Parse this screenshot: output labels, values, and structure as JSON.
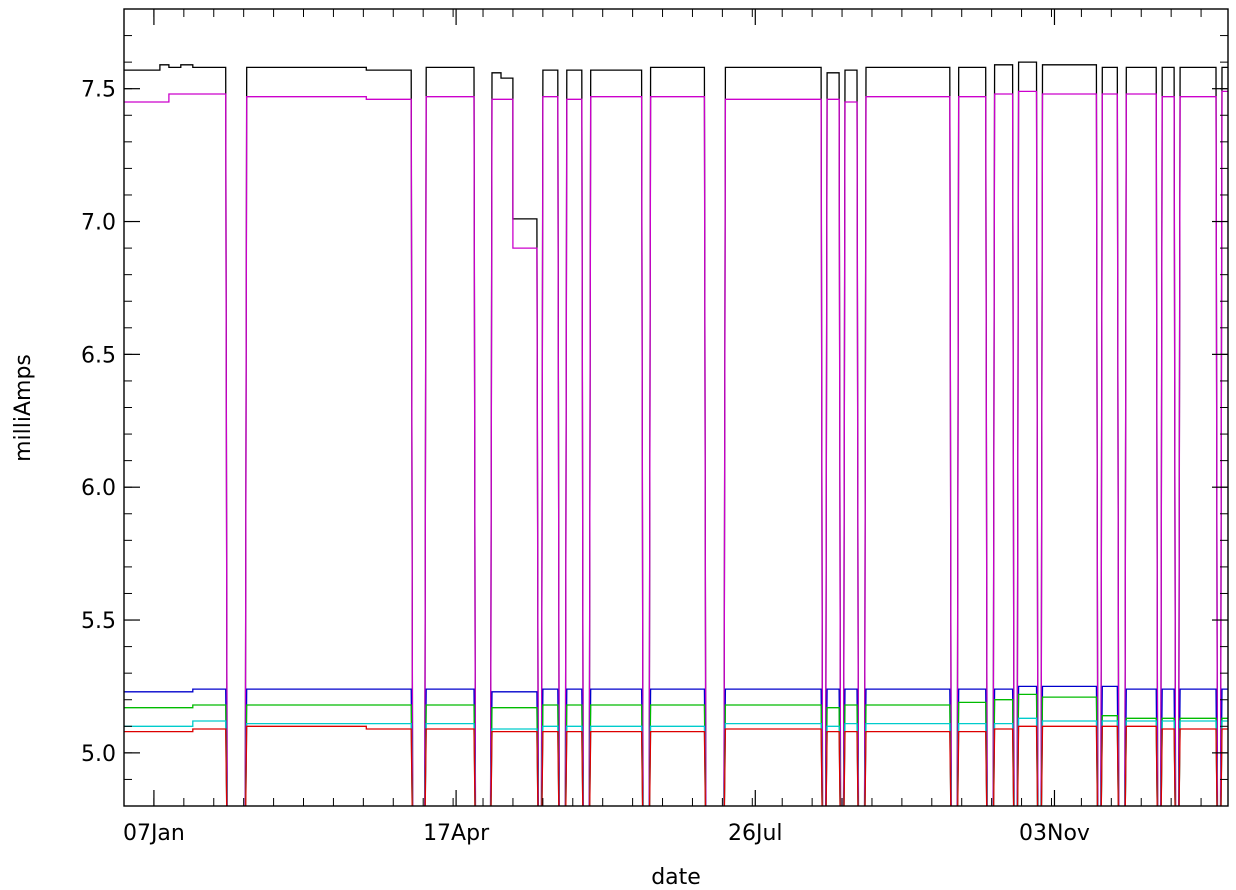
{
  "chart_data": {
    "type": "line",
    "title": "",
    "xlabel": "date",
    "ylabel": "milliAmps",
    "x_tick_labels": [
      "07Jan",
      "17Apr",
      "26Jul",
      "03Nov"
    ],
    "y_tick_labels": [
      "5.0",
      "5.5",
      "6.0",
      "6.5",
      "7.0",
      "7.5"
    ],
    "y_ticks": [
      5.0,
      5.5,
      6.0,
      6.5,
      7.0,
      7.5
    ],
    "ylim": [
      4.8,
      7.8
    ],
    "xlim": [
      "1999-12-28",
      "2000-12-31"
    ],
    "x_ticks": [
      "2000-01-07",
      "2000-04-17",
      "2000-07-26",
      "2000-11-03"
    ],
    "grid": false,
    "x_is_date": true,
    "gaps": [
      [
        "2000-01-31",
        "2000-02-07"
      ],
      [
        "2000-04-02",
        "2000-04-07"
      ],
      [
        "2000-04-23",
        "2000-04-29"
      ],
      [
        "2000-05-14",
        "2000-05-16"
      ],
      [
        "2000-05-21",
        "2000-05-24"
      ],
      [
        "2000-05-29",
        "2000-06-01"
      ],
      [
        "2000-06-18",
        "2000-06-21"
      ],
      [
        "2000-07-09",
        "2000-07-16"
      ],
      [
        "2000-08-17",
        "2000-08-19"
      ],
      [
        "2000-08-23",
        "2000-08-25"
      ],
      [
        "2000-08-29",
        "2000-09-01"
      ],
      [
        "2000-09-29",
        "2000-10-02"
      ],
      [
        "2000-10-11",
        "2000-10-14"
      ],
      [
        "2000-10-20",
        "2000-10-22"
      ],
      [
        "2000-10-28",
        "2000-10-30"
      ],
      [
        "2000-11-17",
        "2000-11-19"
      ],
      [
        "2000-11-24",
        "2000-11-27"
      ],
      [
        "2000-12-07",
        "2000-12-09"
      ],
      [
        "2000-12-13",
        "2000-12-15"
      ],
      [
        "2000-12-27",
        "2000-12-29"
      ]
    ],
    "series": [
      {
        "color": "#000000",
        "values_x": [
          "1999-12-28",
          "2000-01-09",
          "2000-01-09",
          "2000-01-12",
          "2000-01-16",
          "2000-01-20",
          "2000-01-25",
          "2000-01-31",
          "2000-02-07",
          "2000-02-20",
          "2000-03-05",
          "2000-03-18",
          "2000-04-02",
          "2000-04-07",
          "2000-04-16",
          "2000-04-23",
          "2000-04-29",
          "2000-05-02",
          "2000-05-06",
          "2000-05-06",
          "2000-05-14",
          "2000-05-16",
          "2000-05-21",
          "2000-05-24",
          "2000-05-29",
          "2000-06-01",
          "2000-06-18",
          "2000-06-21",
          "2000-07-09",
          "2000-07-16",
          "2000-08-17",
          "2000-08-19",
          "2000-08-23",
          "2000-08-25",
          "2000-08-29",
          "2000-09-01",
          "2000-09-29",
          "2000-10-02",
          "2000-10-11",
          "2000-10-14",
          "2000-10-20",
          "2000-10-22",
          "2000-10-28",
          "2000-10-30",
          "2000-11-17",
          "2000-11-19",
          "2000-11-24",
          "2000-11-27",
          "2000-12-07",
          "2000-12-09",
          "2000-12-13",
          "2000-12-15",
          "2000-12-27",
          "2000-12-29",
          "2000-12-31"
        ],
        "values_y": [
          7.57,
          7.57,
          7.59,
          7.58,
          7.59,
          7.58,
          7.58,
          7.58,
          7.58,
          7.58,
          7.58,
          7.57,
          7.57,
          7.58,
          7.58,
          7.58,
          7.56,
          7.54,
          7.01,
          7.01,
          7.58,
          7.57,
          7.58,
          7.57,
          7.57,
          7.57,
          7.57,
          7.58,
          7.57,
          7.58,
          7.57,
          7.56,
          7.57,
          7.57,
          7.57,
          7.58,
          7.58,
          7.58,
          7.58,
          7.59,
          7.59,
          7.6,
          7.6,
          7.59,
          7.6,
          7.58,
          7.58,
          7.58,
          7.58,
          7.58,
          7.58,
          7.58,
          7.58,
          7.58,
          7.58
        ]
      },
      {
        "color": "#cc00cc",
        "values_x": [
          "1999-12-28",
          "2000-01-09",
          "2000-01-12",
          "2000-01-20",
          "2000-01-31",
          "2000-02-07",
          "2000-02-20",
          "2000-03-05",
          "2000-03-18",
          "2000-04-02",
          "2000-04-07",
          "2000-04-16",
          "2000-04-23",
          "2000-04-29",
          "2000-05-02",
          "2000-05-06",
          "2000-05-06",
          "2000-05-14",
          "2000-05-16",
          "2000-05-21",
          "2000-05-24",
          "2000-05-29",
          "2000-06-01",
          "2000-06-18",
          "2000-06-21",
          "2000-07-09",
          "2000-07-16",
          "2000-08-17",
          "2000-08-19",
          "2000-08-23",
          "2000-08-25",
          "2000-08-29",
          "2000-09-01",
          "2000-09-29",
          "2000-10-02",
          "2000-10-11",
          "2000-10-14",
          "2000-10-20",
          "2000-10-22",
          "2000-10-28",
          "2000-10-30",
          "2000-11-17",
          "2000-11-19",
          "2000-11-24",
          "2000-11-27",
          "2000-12-07",
          "2000-12-09",
          "2000-12-13",
          "2000-12-15",
          "2000-12-27",
          "2000-12-29",
          "2000-12-31"
        ],
        "values_y": [
          7.45,
          7.45,
          7.48,
          7.48,
          7.48,
          7.47,
          7.47,
          7.47,
          7.46,
          7.46,
          7.47,
          7.47,
          7.46,
          7.46,
          7.46,
          6.89,
          6.9,
          7.47,
          7.47,
          7.46,
          7.46,
          7.47,
          7.47,
          7.47,
          7.47,
          7.46,
          7.46,
          7.46,
          7.46,
          7.45,
          7.45,
          7.47,
          7.47,
          7.48,
          7.47,
          7.47,
          7.48,
          7.49,
          7.49,
          7.49,
          7.48,
          7.48,
          7.48,
          7.48,
          7.48,
          7.48,
          7.47,
          7.47,
          7.47,
          7.47,
          7.49,
          7.49
        ]
      },
      {
        "color": "#0000cc",
        "values_x": [
          "1999-12-28",
          "2000-01-09",
          "2000-01-20",
          "2000-01-31",
          "2000-02-07",
          "2000-03-18",
          "2000-04-02",
          "2000-04-07",
          "2000-04-23",
          "2000-04-29",
          "2000-05-14",
          "2000-05-16",
          "2000-06-18",
          "2000-06-21",
          "2000-07-09",
          "2000-07-16",
          "2000-08-17",
          "2000-08-19",
          "2000-08-23",
          "2000-08-25",
          "2000-08-29",
          "2000-09-01",
          "2000-09-29",
          "2000-10-02",
          "2000-10-11",
          "2000-10-14",
          "2000-10-20",
          "2000-10-22",
          "2000-10-28",
          "2000-10-30",
          "2000-11-17",
          "2000-11-19",
          "2000-11-24",
          "2000-11-27",
          "2000-12-07",
          "2000-12-09",
          "2000-12-13",
          "2000-12-15",
          "2000-12-27",
          "2000-12-29",
          "2000-12-31"
        ],
        "values_y": [
          5.23,
          5.23,
          5.24,
          5.24,
          5.24,
          5.24,
          5.24,
          5.24,
          5.24,
          5.23,
          5.23,
          5.24,
          5.24,
          5.24,
          5.24,
          5.24,
          5.24,
          5.24,
          5.24,
          5.24,
          5.24,
          5.24,
          5.24,
          5.24,
          5.24,
          5.24,
          5.24,
          5.25,
          5.25,
          5.25,
          5.25,
          5.25,
          5.24,
          5.24,
          5.24,
          5.24,
          5.24,
          5.24,
          5.24,
          5.24,
          5.24
        ]
      },
      {
        "color": "#00bb00",
        "values_x": [
          "1999-12-28",
          "2000-01-09",
          "2000-01-20",
          "2000-01-31",
          "2000-02-07",
          "2000-03-18",
          "2000-04-02",
          "2000-04-07",
          "2000-04-23",
          "2000-04-29",
          "2000-05-14",
          "2000-05-16",
          "2000-06-18",
          "2000-06-21",
          "2000-07-09",
          "2000-07-16",
          "2000-08-17",
          "2000-08-19",
          "2000-08-23",
          "2000-08-25",
          "2000-08-29",
          "2000-09-01",
          "2000-09-29",
          "2000-10-02",
          "2000-10-11",
          "2000-10-14",
          "2000-10-20",
          "2000-10-22",
          "2000-10-28",
          "2000-10-30",
          "2000-11-17",
          "2000-11-19",
          "2000-11-24",
          "2000-11-27",
          "2000-12-07",
          "2000-12-09",
          "2000-12-13",
          "2000-12-15",
          "2000-12-27",
          "2000-12-29",
          "2000-12-31"
        ],
        "values_y": [
          5.17,
          5.17,
          5.18,
          5.18,
          5.18,
          5.18,
          5.18,
          5.18,
          5.17,
          5.17,
          5.18,
          5.18,
          5.18,
          5.18,
          5.18,
          5.18,
          5.18,
          5.17,
          5.17,
          5.18,
          5.18,
          5.18,
          5.19,
          5.19,
          5.2,
          5.2,
          5.21,
          5.22,
          5.22,
          5.21,
          5.14,
          5.14,
          5.13,
          5.13,
          5.13,
          5.13,
          5.13,
          5.13,
          5.13,
          5.13,
          5.13
        ]
      },
      {
        "color": "#00cccc",
        "values_x": [
          "1999-12-28",
          "2000-01-09",
          "2000-01-20",
          "2000-01-31",
          "2000-02-07",
          "2000-03-18",
          "2000-04-02",
          "2000-04-07",
          "2000-04-23",
          "2000-04-29",
          "2000-05-14",
          "2000-05-16",
          "2000-06-18",
          "2000-06-21",
          "2000-07-09",
          "2000-07-16",
          "2000-08-17",
          "2000-08-19",
          "2000-08-23",
          "2000-08-25",
          "2000-08-29",
          "2000-09-01",
          "2000-09-29",
          "2000-10-02",
          "2000-10-11",
          "2000-10-14",
          "2000-10-20",
          "2000-10-22",
          "2000-10-28",
          "2000-10-30",
          "2000-11-17",
          "2000-11-19",
          "2000-11-24",
          "2000-11-27",
          "2000-12-07",
          "2000-12-09",
          "2000-12-13",
          "2000-12-15",
          "2000-12-27",
          "2000-12-29",
          "2000-12-31"
        ],
        "values_y": [
          5.1,
          5.1,
          5.12,
          5.12,
          5.11,
          5.11,
          5.11,
          5.11,
          5.11,
          5.09,
          5.1,
          5.1,
          5.1,
          5.1,
          5.11,
          5.11,
          5.11,
          5.1,
          5.1,
          5.11,
          5.11,
          5.11,
          5.11,
          5.11,
          5.11,
          5.11,
          5.12,
          5.13,
          5.13,
          5.12,
          5.12,
          5.12,
          5.12,
          5.12,
          5.12,
          5.12,
          5.12,
          5.12,
          5.12,
          5.12,
          5.12
        ]
      },
      {
        "color": "#dd0000",
        "values_x": [
          "1999-12-28",
          "2000-01-09",
          "2000-01-20",
          "2000-01-31",
          "2000-02-07",
          "2000-03-18",
          "2000-04-02",
          "2000-04-07",
          "2000-04-23",
          "2000-04-29",
          "2000-05-14",
          "2000-05-16",
          "2000-06-18",
          "2000-06-21",
          "2000-07-09",
          "2000-07-16",
          "2000-08-17",
          "2000-08-19",
          "2000-08-23",
          "2000-08-25",
          "2000-08-29",
          "2000-09-01",
          "2000-09-29",
          "2000-10-02",
          "2000-10-11",
          "2000-10-14",
          "2000-10-20",
          "2000-10-22",
          "2000-10-28",
          "2000-10-30",
          "2000-11-17",
          "2000-11-19",
          "2000-11-24",
          "2000-11-27",
          "2000-12-07",
          "2000-12-09",
          "2000-12-13",
          "2000-12-15",
          "2000-12-27",
          "2000-12-29",
          "2000-12-31"
        ],
        "values_y": [
          5.08,
          5.08,
          5.09,
          5.09,
          5.1,
          5.09,
          5.09,
          5.09,
          5.09,
          5.08,
          5.08,
          5.08,
          5.08,
          5.08,
          5.09,
          5.09,
          5.09,
          5.08,
          5.08,
          5.08,
          5.08,
          5.08,
          5.08,
          5.08,
          5.09,
          5.09,
          5.1,
          5.1,
          5.1,
          5.1,
          5.1,
          5.1,
          5.1,
          5.1,
          5.09,
          5.09,
          5.09,
          5.09,
          5.09,
          5.09,
          5.09
        ]
      }
    ]
  }
}
